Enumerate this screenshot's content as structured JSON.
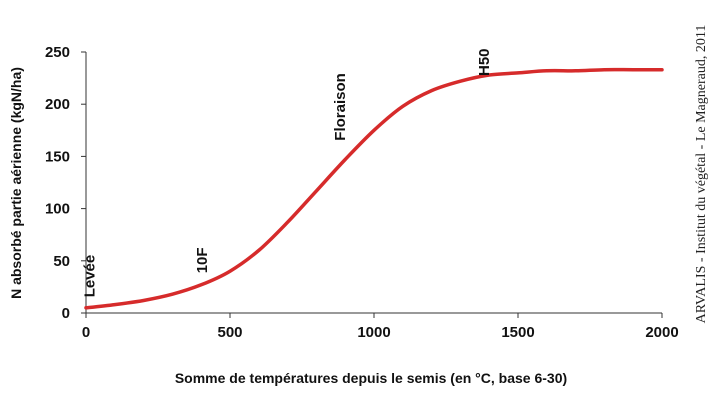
{
  "chart_data": {
    "type": "line",
    "xlabel": "Somme de températures depuis le semis (en °C, base 6-30)",
    "ylabel": "N absorbé partie aérienne (kgN/ha)",
    "xlim": [
      0,
      2000
    ],
    "ylim": [
      0,
      250
    ],
    "x_ticks": [
      "0",
      "500",
      "1000",
      "1500",
      "2000"
    ],
    "y_ticks": [
      "0",
      "50",
      "100",
      "150",
      "200",
      "250"
    ],
    "grid": false,
    "line_color": "#d62b2b",
    "series": [
      {
        "x": [
          0,
          100,
          200,
          300,
          400,
          500,
          600,
          700,
          800,
          900,
          1000,
          1100,
          1200,
          1300,
          1400,
          1500,
          1600,
          1700,
          1800,
          1900,
          2000
        ],
        "values": [
          5,
          8,
          12,
          18,
          27,
          40,
          60,
          87,
          117,
          147,
          175,
          198,
          213,
          222,
          228,
          230,
          232,
          232,
          233,
          233,
          233
        ]
      }
    ],
    "annotations": [
      {
        "text": "Levée",
        "x": 30,
        "y": 15
      },
      {
        "text": "10F",
        "x": 420,
        "y": 38
      },
      {
        "text": "Floraison",
        "x": 900,
        "y": 165
      },
      {
        "text": "H50",
        "x": 1400,
        "y": 227
      }
    ]
  },
  "credit": "ARVALIS - Institut du végétal - Le Magneraud, 2011"
}
